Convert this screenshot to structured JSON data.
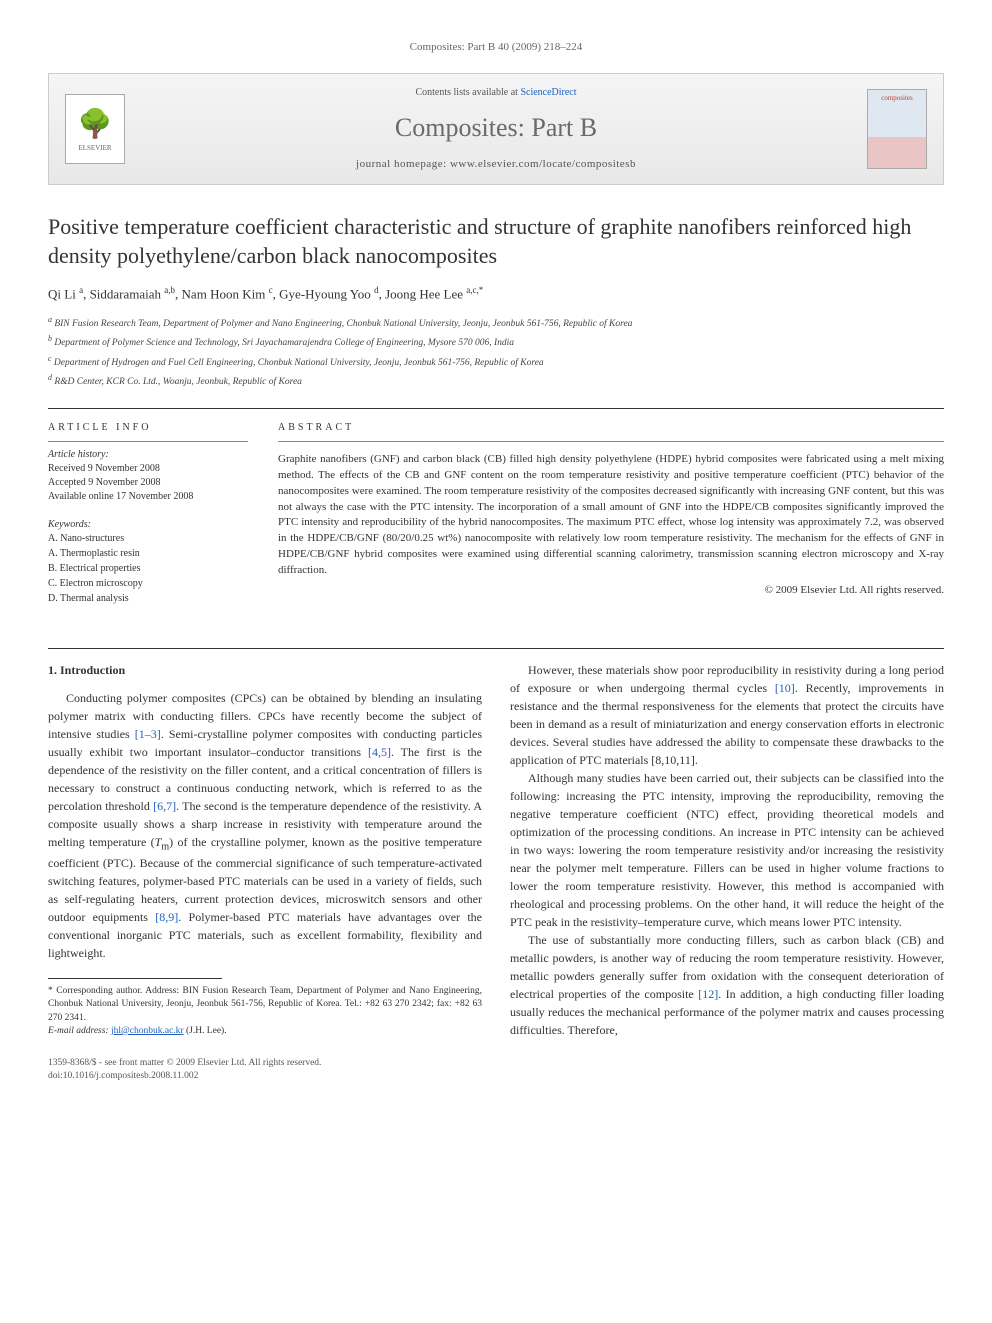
{
  "header_cite": "Composites: Part B 40 (2009) 218–224",
  "banner": {
    "contents_line_pre": "Contents lists available at ",
    "contents_link": "ScienceDirect",
    "journal_name": "Composites: Part B",
    "homepage_label": "journal homepage: www.elsevier.com/locate/compositesb",
    "elsevier_label": "ELSEVIER",
    "cover_label": "composites"
  },
  "title": "Positive temperature coefficient characteristic and structure of graphite nanofibers reinforced high density polyethylene/carbon black nanocomposites",
  "authors_html": "Qi Li <sup>a</sup>, Siddaramaiah <sup>a,b</sup>, Nam Hoon Kim <sup>c</sup>, Gye-Hyoung Yoo <sup>d</sup>, Joong Hee Lee <sup>a,c,*</sup>",
  "affiliations": [
    "a BIN Fusion Research Team, Department of Polymer and Nano Engineering, Chonbuk National University, Jeonju, Jeonbuk 561-756, Republic of Korea",
    "b Department of Polymer Science and Technology, Sri Jayachamarajendra College of Engineering, Mysore 570 006, India",
    "c Department of Hydrogen and Fuel Cell Engineering, Chonbuk National University, Jeonju, Jeonbuk 561-756, Republic of Korea",
    "d R&D Center, KCR Co. Ltd., Woanju, Jeonbuk, Republic of Korea"
  ],
  "article_info": {
    "head": "ARTICLE INFO",
    "history_label": "Article history:",
    "received": "Received 9 November 2008",
    "accepted": "Accepted 9 November 2008",
    "online": "Available online 17 November 2008",
    "keywords_label": "Keywords:",
    "keywords": [
      "A. Nano-structures",
      "A. Thermoplastic resin",
      "B. Electrical properties",
      "C. Electron microscopy",
      "D. Thermal analysis"
    ]
  },
  "abstract": {
    "head": "ABSTRACT",
    "text": "Graphite nanofibers (GNF) and carbon black (CB) filled high density polyethylene (HDPE) hybrid composites were fabricated using a melt mixing method. The effects of the CB and GNF content on the room temperature resistivity and positive temperature coefficient (PTC) behavior of the nanocomposites were examined. The room temperature resistivity of the composites decreased significantly with increasing GNF content, but this was not always the case with the PTC intensity. The incorporation of a small amount of GNF into the HDPE/CB composites significantly improved the PTC intensity and reproducibility of the hybrid nanocomposites. The maximum PTC effect, whose log intensity was approximately 7.2, was observed in the HDPE/CB/GNF (80/20/0.25 wt%) nanocomposite with relatively low room temperature resistivity. The mechanism for the effects of GNF in HDPE/CB/GNF hybrid composites were examined using differential scanning calorimetry, transmission scanning electron microscopy and X-ray diffraction.",
    "copyright": "© 2009 Elsevier Ltd. All rights reserved."
  },
  "section1_head": "1. Introduction",
  "paragraphs": {
    "p1": "Conducting polymer composites (CPCs) can be obtained by blending an insulating polymer matrix with conducting fillers. CPCs have recently become the subject of intensive studies [1–3]. Semi-crystalline polymer composites with conducting particles usually exhibit two important insulator–conductor transitions [4,5]. The first is the dependence of the resistivity on the filler content, and a critical concentration of fillers is necessary to construct a continuous conducting network, which is referred to as the percolation threshold [6,7]. The second is the temperature dependence of the resistivity. A composite usually shows a sharp increase in resistivity with temperature around the melting temperature (Tm) of the crystalline polymer, known as the positive temperature coefficient (PTC). Because of the commercial significance of such temperature-activated switching features, polymer-based PTC materials can be used in a variety of fields, such as self-regulating heaters, current protection devices, microswitch sensors and other outdoor equipments [8,9]. Polymer-based PTC materials have advantages over the conventional inorganic PTC materials, such as excellent formability, flexibility and lightweight.",
    "p2": "However, these materials show poor reproducibility in resistivity during a long period of exposure or when undergoing thermal cycles [10]. Recently, improvements in resistance and the thermal responsiveness for the elements that protect the circuits have been in demand as a result of miniaturization and energy conservation efforts in electronic devices. Several studies have addressed the ability to compensate these drawbacks to the application of PTC materials [8,10,11].",
    "p3": "Although many studies have been carried out, their subjects can be classified into the following: increasing the PTC intensity, improving the reproducibility, removing the negative temperature coefficient (NTC) effect, providing theoretical models and optimization of the processing conditions. An increase in PTC intensity can be achieved in two ways: lowering the room temperature resistivity and/or increasing the resistivity near the polymer melt temperature. Fillers can be used in higher volume fractions to lower the room temperature resistivity. However, this method is accompanied with rheological and processing problems. On the other hand, it will reduce the height of the PTC peak in the resistivity–temperature curve, which means lower PTC intensity.",
    "p4": "The use of substantially more conducting fillers, such as carbon black (CB) and metallic powders, is another way of reducing the room temperature resistivity. However, metallic powders generally suffer from oxidation with the consequent deterioration of electrical properties of the composite [12]. In addition, a high conducting filler loading usually reduces the mechanical performance of the polymer matrix and causes processing difficulties. Therefore,"
  },
  "footnote": {
    "corr": "* Corresponding author. Address: BIN Fusion Research Team, Department of Polymer and Nano Engineering, Chonbuk National University, Jeonju, Jeonbuk 561-756, Republic of Korea. Tel.: +82 63 270 2342; fax: +82 63 270 2341.",
    "email_label": "E-mail address:",
    "email": "jhl@chonbuk.ac.kr",
    "email_who": "(J.H. Lee)."
  },
  "footer": {
    "issn": "1359-8368/$ - see front matter © 2009 Elsevier Ltd. All rights reserved.",
    "doi": "doi:10.1016/j.compositesb.2008.11.002"
  },
  "colors": {
    "link": "#2060c0",
    "rule": "#333333",
    "muted": "#666666"
  }
}
